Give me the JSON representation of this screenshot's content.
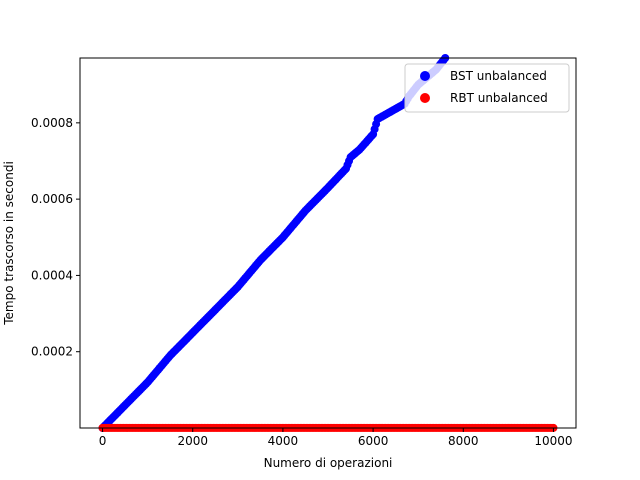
{
  "chart_data": {
    "type": "scatter",
    "xlabel": "Numero di operazioni",
    "ylabel": "Tempo trascorso in secondi",
    "xlim": [
      -500,
      10500
    ],
    "ylim": [
      0,
      0.00097
    ],
    "x_ticks": [
      0,
      2000,
      4000,
      6000,
      8000,
      10000
    ],
    "x_tick_labels": [
      "0",
      "2000",
      "4000",
      "6000",
      "8000",
      "10000"
    ],
    "y_ticks": [
      0.0002,
      0.0004,
      0.0006,
      0.0008
    ],
    "y_tick_labels": [
      "0.0002",
      "0.0004",
      "0.0006",
      "0.0008"
    ],
    "grid": false,
    "legend_position": "upper right",
    "series": [
      {
        "name": "BST unbalanced",
        "color": "#0000ff",
        "x": [
          0,
          500,
          1000,
          1500,
          2000,
          2500,
          3000,
          3500,
          4000,
          4500,
          5000,
          5400,
          5500,
          5700,
          6000,
          6100,
          6400,
          6700,
          6800,
          7000,
          7200,
          7400,
          7600
        ],
        "y": [
          0.0,
          6e-05,
          0.00012,
          0.00019,
          0.00025,
          0.00031,
          0.00037,
          0.00044,
          0.0005,
          0.00057,
          0.00063,
          0.00068,
          0.00071,
          0.00073,
          0.00077,
          0.00081,
          0.00083,
          0.00085,
          0.00087,
          0.0009,
          0.00092,
          0.00094,
          0.00097
        ]
      },
      {
        "name": "RBT unbalanced",
        "color": "#ff0000",
        "x": [
          0,
          10000
        ],
        "y": [
          3e-07,
          3e-07
        ]
      }
    ]
  }
}
